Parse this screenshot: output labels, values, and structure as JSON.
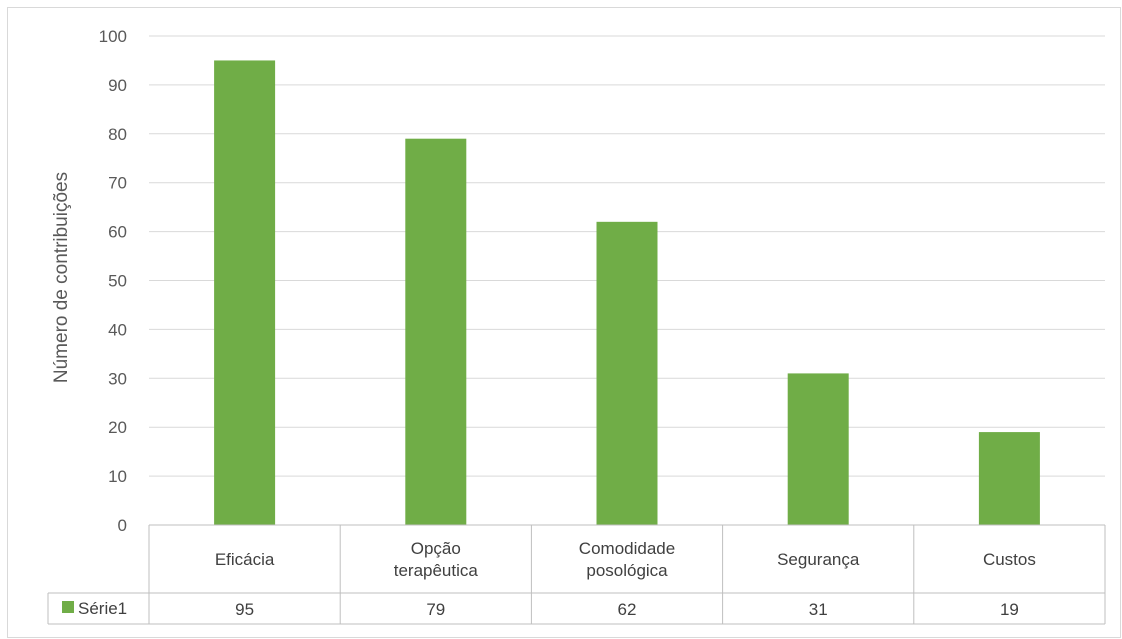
{
  "chart_data": {
    "type": "bar",
    "categories": [
      "Eficácia",
      "Opção terapêutica",
      "Comodidade posológica",
      "Segurança",
      "Custos"
    ],
    "category_lines": [
      [
        "Eficácia"
      ],
      [
        "Opção",
        "terapêutica"
      ],
      [
        "Comodidade",
        "posológica"
      ],
      [
        "Segurança"
      ],
      [
        "Custos"
      ]
    ],
    "series": [
      {
        "name": "Série1",
        "values": [
          95,
          79,
          62,
          31,
          19
        ],
        "color": "#70ad47"
      }
    ],
    "ylabel": "Número de contribuições",
    "ylim": [
      0,
      100
    ],
    "yticks": [
      0,
      10,
      20,
      30,
      40,
      50,
      60,
      70,
      80,
      90,
      100
    ],
    "grid": true,
    "data_table": true,
    "gridline_color": "#d9d9d9",
    "table_border_color": "#bfbfbf"
  }
}
